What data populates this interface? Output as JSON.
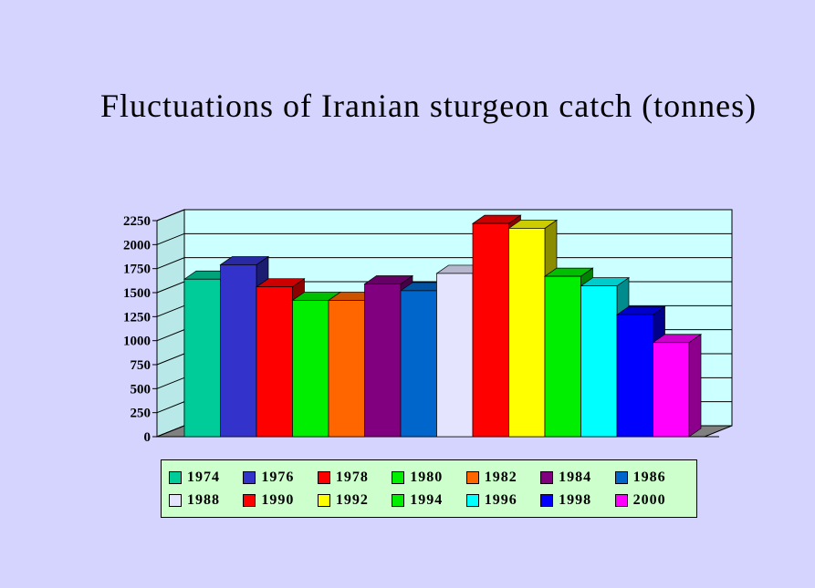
{
  "title": "Fluctuations of Iranian sturgeon catch (tonnes)",
  "chart_data": {
    "type": "bar",
    "title": "Fluctuations of Iranian sturgeon catch (tonnes)",
    "xlabel": "",
    "ylabel": "",
    "ylim": [
      0,
      2250
    ],
    "y_ticks": [
      "0",
      "250",
      "500",
      "750",
      "1000",
      "1250",
      "1500",
      "1750",
      "2000",
      "2250"
    ],
    "grid": true,
    "legend_position": "bottom",
    "series": [
      {
        "name": "1974",
        "value": 1640,
        "color": "#00cc99"
      },
      {
        "name": "1976",
        "value": 1790,
        "color": "#3333cc"
      },
      {
        "name": "1978",
        "value": 1560,
        "color": "#ff0000"
      },
      {
        "name": "1980",
        "value": 1420,
        "color": "#00ee00"
      },
      {
        "name": "1982",
        "value": 1420,
        "color": "#ff6600"
      },
      {
        "name": "1984",
        "value": 1590,
        "color": "#800080"
      },
      {
        "name": "1986",
        "value": 1520,
        "color": "#0066cc"
      },
      {
        "name": "1988",
        "value": 1700,
        "color": "#e4e4ff"
      },
      {
        "name": "1990",
        "value": 2220,
        "color": "#ff0000"
      },
      {
        "name": "1992",
        "value": 2170,
        "color": "#ffff00"
      },
      {
        "name": "1994",
        "value": 1670,
        "color": "#00ee00"
      },
      {
        "name": "1996",
        "value": 1570,
        "color": "#00ffff"
      },
      {
        "name": "1998",
        "value": 1270,
        "color": "#0000ff"
      },
      {
        "name": "2000",
        "value": 980,
        "color": "#ff00ff"
      }
    ]
  }
}
